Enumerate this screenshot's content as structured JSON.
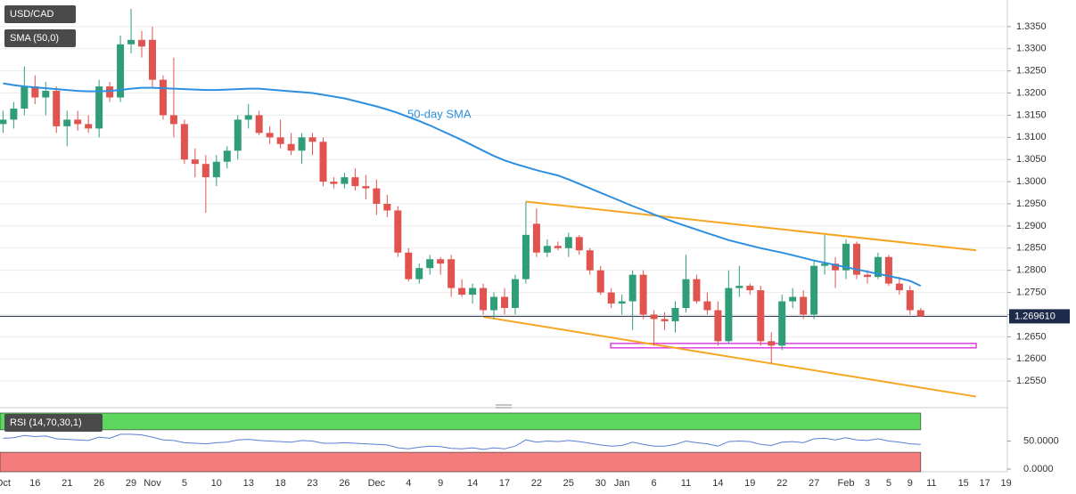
{
  "chart_data": [
    {
      "type": "candlestick",
      "categories": [
        "Oct",
        null,
        null,
        "16",
        null,
        null,
        "21",
        null,
        null,
        "26",
        null,
        null,
        "29",
        null,
        "Nov",
        null,
        null,
        "5",
        null,
        null,
        "10",
        null,
        null,
        "13",
        null,
        null,
        "18",
        null,
        null,
        "23",
        null,
        null,
        "26",
        null,
        null,
        "Dec",
        null,
        null,
        "4",
        null,
        null,
        "9",
        null,
        null,
        "14",
        null,
        null,
        "17",
        null,
        null,
        "22",
        null,
        null,
        "25",
        null,
        null,
        "30",
        null,
        "Jan",
        null,
        null,
        "6",
        null,
        null,
        "11",
        null,
        null,
        "14",
        null,
        null,
        "19",
        null,
        null,
        "22",
        null,
        null,
        "27",
        null,
        null,
        "Feb",
        null,
        "3",
        null,
        "5",
        null,
        "9",
        null,
        "11",
        null,
        null,
        "15",
        null,
        "17",
        null,
        "19"
      ],
      "series": [
        {
          "name": "USD/CAD",
          "up_color": "#2f9e78",
          "down_color": "#e0534f",
          "open": [
            1.313,
            1.314,
            1.3165,
            1.3215,
            1.319,
            1.3205,
            1.3125,
            1.314,
            1.313,
            1.312,
            1.3215,
            1.319,
            1.331,
            1.332,
            1.332,
            1.323,
            1.315,
            1.313,
            1.305,
            1.304,
            1.301,
            1.3045,
            1.307,
            1.314,
            1.315,
            1.311,
            1.31,
            1.3085,
            1.307,
            1.31,
            1.309,
            1.3,
            1.2995,
            1.301,
            1.299,
            1.2985,
            1.295,
            1.2935,
            1.284,
            1.278,
            1.2805,
            1.2825,
            1.2825,
            1.276,
            1.2745,
            1.276,
            1.271,
            1.274,
            1.2715,
            1.278,
            1.2905,
            1.284,
            1.2855,
            1.285,
            1.2875,
            1.2845,
            1.28,
            1.275,
            1.2725,
            1.273,
            1.279,
            1.27,
            1.269,
            1.2685,
            1.2715,
            1.278,
            1.273,
            1.271,
            1.264,
            1.276,
            1.2765,
            1.2755,
            1.264,
            1.263,
            1.273,
            1.274,
            1.27,
            1.281,
            1.2815,
            1.28,
            1.286,
            1.279,
            1.2785,
            1.283,
            1.277,
            1.2755,
            1.271,
            null,
            null,
            null,
            null,
            null,
            null,
            null,
            null
          ],
          "high": [
            1.316,
            1.318,
            1.326,
            1.324,
            1.3225,
            1.3215,
            1.316,
            1.316,
            1.315,
            1.323,
            1.3225,
            1.333,
            1.339,
            1.334,
            1.335,
            1.324,
            1.328,
            1.314,
            1.3075,
            1.306,
            1.306,
            1.308,
            1.315,
            1.3175,
            1.316,
            1.3125,
            1.314,
            1.311,
            1.311,
            1.311,
            1.31,
            1.301,
            1.302,
            1.303,
            1.3015,
            1.3005,
            1.297,
            1.2945,
            1.285,
            1.2815,
            1.2835,
            1.283,
            1.2835,
            1.278,
            1.277,
            1.277,
            1.275,
            1.276,
            1.279,
            1.2955,
            1.294,
            1.287,
            1.2865,
            1.2885,
            1.288,
            1.285,
            1.281,
            1.276,
            1.2745,
            1.28,
            1.28,
            1.271,
            1.2705,
            1.273,
            1.2835,
            1.279,
            1.275,
            1.273,
            1.28,
            1.281,
            1.277,
            1.2765,
            1.266,
            1.2745,
            1.276,
            1.2755,
            1.282,
            1.288,
            1.283,
            1.287,
            1.2865,
            1.28,
            1.284,
            1.2835,
            1.2785,
            1.2765,
            1.2715,
            null,
            null,
            null,
            null,
            null,
            null,
            null,
            null
          ],
          "low": [
            1.311,
            1.312,
            1.315,
            1.3175,
            1.315,
            1.311,
            1.308,
            1.3115,
            1.311,
            1.31,
            1.318,
            1.318,
            1.329,
            1.328,
            1.321,
            1.314,
            1.31,
            1.304,
            1.301,
            1.293,
            1.299,
            1.303,
            1.305,
            1.312,
            1.3105,
            1.3085,
            1.3075,
            1.306,
            1.304,
            1.306,
            1.299,
            1.2985,
            1.2985,
            1.298,
            1.296,
            1.2925,
            1.292,
            1.283,
            1.2775,
            1.277,
            1.279,
            1.279,
            1.274,
            1.274,
            1.2725,
            1.27,
            1.269,
            1.27,
            1.27,
            1.277,
            1.283,
            1.283,
            1.2845,
            1.283,
            1.2835,
            1.279,
            1.2745,
            1.2715,
            1.27,
            1.2665,
            1.269,
            1.263,
            1.2665,
            1.266,
            1.2705,
            1.2725,
            1.27,
            1.263,
            1.2635,
            1.274,
            1.2745,
            1.263,
            1.259,
            1.262,
            1.2715,
            1.269,
            1.269,
            1.279,
            1.276,
            1.278,
            1.278,
            1.277,
            1.278,
            1.2765,
            1.2745,
            1.27,
            1.2695,
            null,
            null,
            null,
            null,
            null,
            null,
            null,
            null
          ],
          "close": [
            1.314,
            1.3165,
            1.3215,
            1.319,
            1.3205,
            1.3125,
            1.314,
            1.313,
            1.312,
            1.3215,
            1.319,
            1.331,
            1.332,
            1.3305,
            1.323,
            1.315,
            1.313,
            1.305,
            1.304,
            1.301,
            1.3045,
            1.307,
            1.314,
            1.315,
            1.311,
            1.31,
            1.3085,
            1.307,
            1.31,
            1.309,
            1.3,
            1.2995,
            1.301,
            1.299,
            1.2985,
            1.295,
            1.2935,
            1.284,
            1.278,
            1.2805,
            1.2825,
            1.2815,
            1.276,
            1.2745,
            1.276,
            1.271,
            1.274,
            1.2715,
            1.278,
            1.288,
            1.284,
            1.2855,
            1.285,
            1.2875,
            1.2845,
            1.28,
            1.275,
            1.2725,
            1.273,
            1.279,
            1.27,
            1.269,
            1.2685,
            1.2715,
            1.278,
            1.273,
            1.271,
            1.264,
            1.276,
            1.2765,
            1.2755,
            1.264,
            1.263,
            1.273,
            1.274,
            1.27,
            1.281,
            1.2815,
            1.28,
            1.286,
            1.279,
            1.2785,
            1.283,
            1.277,
            1.2755,
            1.271,
            1.26961,
            null,
            null,
            null,
            null,
            null,
            null,
            null,
            null
          ]
        },
        {
          "name": "SMA (50,0)",
          "color": "#2d8fe0",
          "values": [
            1.3222,
            1.3218,
            1.3215,
            1.3213,
            1.3211,
            1.3209,
            1.3207,
            1.3205,
            1.3204,
            1.3204,
            1.3205,
            1.3207,
            1.321,
            1.3212,
            1.3212,
            1.3211,
            1.321,
            1.3209,
            1.3208,
            1.3207,
            1.3207,
            1.3208,
            1.3209,
            1.321,
            1.321,
            1.3208,
            1.3206,
            1.3204,
            1.3202,
            1.32,
            1.3196,
            1.3192,
            1.3188,
            1.3182,
            1.3176,
            1.317,
            1.3163,
            1.3155,
            1.3146,
            1.3137,
            1.3127,
            1.3116,
            1.3105,
            1.3094,
            1.3082,
            1.307,
            1.3058,
            1.3048,
            1.304,
            1.3033,
            1.3026,
            1.302,
            1.3014,
            1.3005,
            1.2995,
            1.2985,
            1.2975,
            1.2965,
            1.2955,
            1.2945,
            1.2936,
            1.2926,
            1.2917,
            1.2908,
            1.29,
            1.2892,
            1.2884,
            1.2876,
            1.2868,
            1.2862,
            1.2856,
            1.285,
            1.2845,
            1.284,
            1.2834,
            1.2828,
            1.2822,
            1.2817,
            1.2812,
            1.2807,
            1.2802,
            1.2797,
            1.2792,
            1.2787,
            1.2782,
            1.2776,
            1.2765,
            null,
            null,
            null,
            null,
            null,
            null,
            null,
            null
          ]
        }
      ],
      "annotation": "50-day SMA",
      "trendline_color": "#f5a623",
      "trendlines": [
        {
          "values": [
            1.2955,
            1.2845
          ]
        },
        {
          "values": [
            1.2695,
            1.2515
          ]
        }
      ],
      "support_zone": {
        "values": [
          1.2625,
          1.2635
        ],
        "color": "#e040e0"
      },
      "last_price": {
        "value": 1.26961,
        "label": "1.269610"
      },
      "ylim": [
        1.249,
        1.341
      ],
      "yticks": [
        {
          "value": 1.255,
          "label": "1.2550"
        },
        {
          "value": 1.26,
          "label": "1.2600"
        },
        {
          "value": 1.265,
          "label": "1.2650"
        },
        {
          "value": 1.27,
          "label": "1.2700"
        },
        {
          "value": 1.275,
          "label": "1.2750"
        },
        {
          "value": 1.28,
          "label": "1.2800"
        },
        {
          "value": 1.285,
          "label": "1.2850"
        },
        {
          "value": 1.29,
          "label": "1.2900"
        },
        {
          "value": 1.295,
          "label": "1.2950"
        },
        {
          "value": 1.3,
          "label": "1.3000"
        },
        {
          "value": 1.305,
          "label": "1.3050"
        },
        {
          "value": 1.31,
          "label": "1.3100"
        },
        {
          "value": 1.315,
          "label": "1.3150"
        },
        {
          "value": 1.32,
          "label": "1.3200"
        },
        {
          "value": 1.325,
          "label": "1.3250"
        },
        {
          "value": 1.33,
          "label": "1.3300"
        },
        {
          "value": 1.335,
          "label": "1.3350"
        }
      ],
      "grid": true
    },
    {
      "type": "line",
      "title": "RSI (14,70,30,1)",
      "series": [
        {
          "name": "RSI",
          "color": "#5b7fd6",
          "values": [
            55,
            56,
            60,
            58,
            59,
            54,
            53,
            52,
            51,
            57,
            55,
            62,
            62,
            61,
            57,
            52,
            51,
            47,
            46,
            45,
            47,
            48,
            52,
            53,
            51,
            50,
            49,
            48,
            51,
            50,
            46,
            46,
            47,
            46,
            45,
            44,
            43,
            38,
            36,
            39,
            41,
            40,
            37,
            36,
            38,
            35,
            38,
            36,
            41,
            52,
            48,
            50,
            49,
            51,
            49,
            46,
            43,
            41,
            42,
            48,
            44,
            41,
            41,
            44,
            50,
            47,
            45,
            41,
            49,
            50,
            49,
            44,
            42,
            48,
            49,
            47,
            54,
            55,
            52,
            56,
            52,
            51,
            54,
            50,
            48,
            45,
            44,
            null,
            null,
            null,
            null,
            null,
            null,
            null,
            null
          ]
        }
      ],
      "bands": [
        30,
        70
      ],
      "band_colors": [
        "#f47c7c",
        "#5cd65c"
      ],
      "ylim": [
        0,
        100
      ],
      "yticks": [
        {
          "value": 0,
          "label": "0.0000"
        },
        {
          "value": 50,
          "label": "50.0000"
        }
      ]
    }
  ]
}
